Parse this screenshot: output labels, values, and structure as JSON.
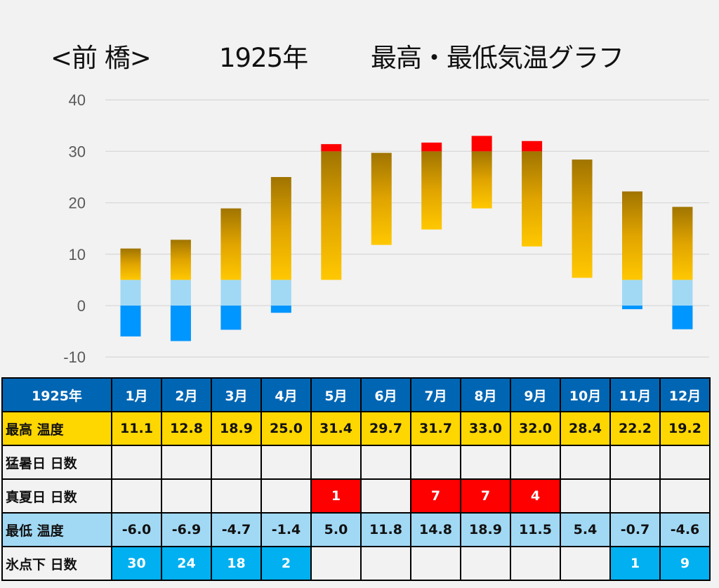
{
  "title": {
    "city": "<前 橋>",
    "year": "1925年",
    "main": "最高・最低気温グラフ"
  },
  "colors": {
    "high_top": "#a07400",
    "high_bottom": "#ffc800",
    "above_30": "#ff0000",
    "band_0_5": "#a1d9f5",
    "below_0": "#0096ff",
    "header_bg": "#0066b3",
    "high_row_bg": "#ffd700",
    "low_row_bg": "#a1d9f5",
    "manatsubi_cell": "#ff0000",
    "freeze_cell": "#00b0f0"
  },
  "chart_data": {
    "type": "bar",
    "subtype": "floating-range",
    "title": "<前 橋> 1925年 最高・最低気温グラフ",
    "categories": [
      "1月",
      "2月",
      "3月",
      "4月",
      "5月",
      "6月",
      "7月",
      "8月",
      "9月",
      "10月",
      "11月",
      "12月"
    ],
    "series": [
      {
        "name": "最高 温度",
        "values": [
          11.1,
          12.8,
          18.9,
          25.0,
          31.4,
          29.7,
          31.7,
          33.0,
          32.0,
          28.4,
          22.2,
          19.2
        ]
      },
      {
        "name": "最低 温度",
        "values": [
          -6.0,
          -6.9,
          -4.7,
          -1.4,
          5.0,
          11.8,
          14.8,
          18.9,
          11.5,
          5.4,
          -0.7,
          -4.6
        ]
      }
    ],
    "bands": [
      {
        "from": 30,
        "to": 50,
        "color_key": "above_30"
      },
      {
        "from": 5,
        "to": 30,
        "color_key": "gradient"
      },
      {
        "from": 0,
        "to": 5,
        "color_key": "band_0_5"
      },
      {
        "from": -20,
        "to": 0,
        "color_key": "below_0"
      }
    ],
    "yticks": [
      40,
      30,
      20,
      10,
      0,
      -10
    ],
    "ylim": [
      -10,
      40
    ],
    "grid": true,
    "xlabel": "",
    "ylabel": ""
  },
  "table": {
    "header_label": "1925年",
    "months": [
      "1月",
      "2月",
      "3月",
      "4月",
      "5月",
      "6月",
      "7月",
      "8月",
      "9月",
      "10月",
      "11月",
      "12月"
    ],
    "rows": [
      {
        "key": "high",
        "label": "最高 温度",
        "values": [
          "11.1",
          "12.8",
          "18.9",
          "25.0",
          "31.4",
          "29.7",
          "31.7",
          "33.0",
          "32.0",
          "28.4",
          "22.2",
          "19.2"
        ]
      },
      {
        "key": "moushobi",
        "label": "猛暑日 日数",
        "values": [
          "",
          "",
          "",
          "",
          "",
          "",
          "",
          "",
          "",
          "",
          "",
          ""
        ]
      },
      {
        "key": "manatsubi",
        "label": "真夏日 日数",
        "values": [
          "",
          "",
          "",
          "",
          "1",
          "",
          "7",
          "7",
          "4",
          "",
          "",
          ""
        ]
      },
      {
        "key": "low",
        "label": "最低 温度",
        "values": [
          "-6.0",
          "-6.9",
          "-4.7",
          "-1.4",
          "5.0",
          "11.8",
          "14.8",
          "18.9",
          "11.5",
          "5.4",
          "-0.7",
          "-4.6"
        ]
      },
      {
        "key": "freeze",
        "label": "氷点下 日数",
        "values": [
          "30",
          "24",
          "18",
          "2",
          "",
          "",
          "",
          "",
          "",
          "",
          "1",
          "9"
        ]
      }
    ]
  }
}
